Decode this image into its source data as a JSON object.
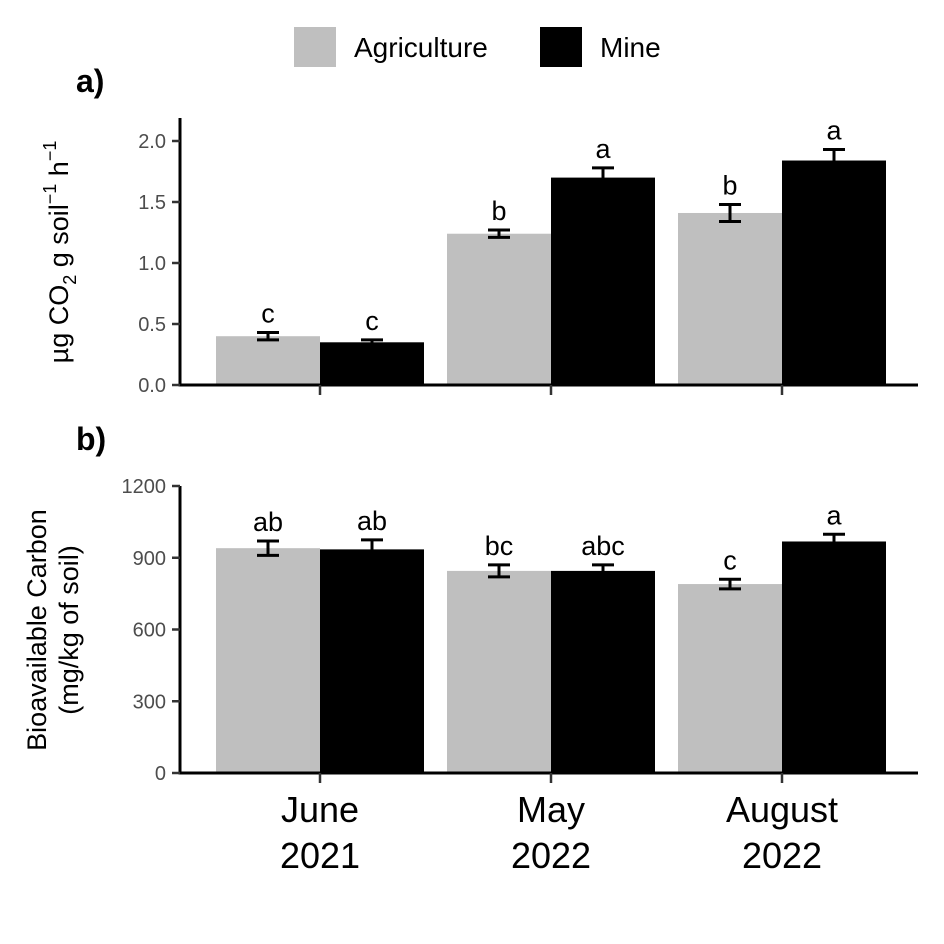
{
  "legend": {
    "items": [
      {
        "label": "Agriculture",
        "color": "#bfbfbf"
      },
      {
        "label": "Mine",
        "color": "#000000"
      }
    ]
  },
  "chart_data": [
    {
      "type": "bar",
      "panel_label": "a)",
      "categories": [
        "June 2021",
        "May 2022",
        "August 2022"
      ],
      "series": [
        {
          "name": "Agriculture",
          "color": "#bfbfbf",
          "values": [
            0.4,
            1.24,
            1.41
          ],
          "errors": [
            0.03,
            0.03,
            0.07
          ],
          "letters": [
            "c",
            "b",
            "b"
          ]
        },
        {
          "name": "Mine",
          "color": "#000000",
          "values": [
            0.35,
            1.7,
            1.84
          ],
          "errors": [
            0.02,
            0.08,
            0.09
          ],
          "letters": [
            "c",
            "a",
            "a"
          ]
        }
      ],
      "ylabel": {
        "prefix": "µg CO",
        "sub": "2",
        "mid": " g soil",
        "sup1": "−1",
        "mid2": " h",
        "sup2": "−1"
      },
      "ylim": [
        0,
        2.2
      ],
      "yticks": [
        "0.0",
        "0.5",
        "1.0",
        "1.5",
        "2.0"
      ],
      "ytick_values": [
        0,
        0.5,
        1.0,
        1.5,
        2.0
      ]
    },
    {
      "type": "bar",
      "panel_label": "b)",
      "categories": [
        "June 2021",
        "May 2022",
        "August 2022"
      ],
      "series": [
        {
          "name": "Agriculture",
          "color": "#bfbfbf",
          "values": [
            940,
            845,
            790
          ],
          "errors": [
            30,
            25,
            20
          ],
          "letters": [
            "ab",
            "bc",
            "c"
          ]
        },
        {
          "name": "Mine",
          "color": "#000000",
          "values": [
            935,
            845,
            968
          ],
          "errors": [
            40,
            25,
            30
          ],
          "letters": [
            "ab",
            "abc",
            "a"
          ]
        }
      ],
      "ylabel_lines": [
        "Bioavailable Carbon",
        "(mg/kg of soil)"
      ],
      "ylim": [
        0,
        1200
      ],
      "yticks": [
        "0",
        "300",
        "600",
        "900",
        "1200"
      ],
      "ytick_values": [
        0,
        300,
        600,
        900,
        1200
      ]
    }
  ],
  "x_axis": {
    "labels": [
      {
        "line1": "June",
        "line2": "2021"
      },
      {
        "line1": "May",
        "line2": "2022"
      },
      {
        "line1": "August",
        "line2": "2022"
      }
    ]
  }
}
